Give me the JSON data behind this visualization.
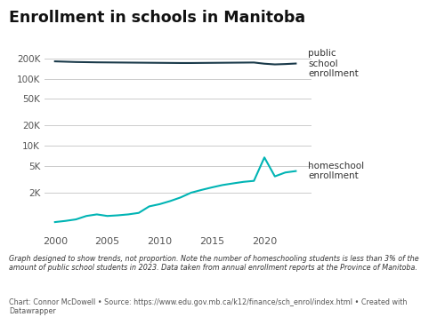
{
  "title": "Enrollment in schools in Manitoba",
  "public_years": [
    2000,
    2001,
    2002,
    2003,
    2004,
    2005,
    2006,
    2007,
    2008,
    2009,
    2010,
    2011,
    2012,
    2013,
    2014,
    2015,
    2016,
    2017,
    2018,
    2019,
    2020,
    2021,
    2022,
    2023
  ],
  "public_values": [
    181000,
    179000,
    177000,
    176000,
    175000,
    174500,
    174000,
    173500,
    173000,
    172500,
    172000,
    171500,
    171000,
    171000,
    171500,
    172000,
    172500,
    173000,
    173500,
    174000,
    167000,
    163000,
    165000,
    168000
  ],
  "home_years": [
    2000,
    2001,
    2002,
    2003,
    2004,
    2005,
    2006,
    2007,
    2008,
    2009,
    2010,
    2011,
    2012,
    2013,
    2014,
    2015,
    2016,
    2017,
    2018,
    2019,
    2020,
    2021,
    2022,
    2023
  ],
  "home_values": [
    730,
    760,
    800,
    900,
    950,
    900,
    920,
    950,
    1000,
    1250,
    1350,
    1500,
    1700,
    2000,
    2200,
    2400,
    2600,
    2750,
    2900,
    3000,
    6700,
    3500,
    4000,
    4200
  ],
  "public_color": "#1a3a4a",
  "home_color": "#00b4b4",
  "bg_color": "#ffffff",
  "grid_color": "#cccccc",
  "yticks_log": [
    2000,
    5000,
    10000,
    20000,
    50000,
    100000,
    200000
  ],
  "ytick_labels": [
    "2K",
    "5K",
    "10K",
    "20K",
    "50K",
    "100K",
    "200K"
  ],
  "xticks": [
    2000,
    2005,
    2010,
    2015,
    2020
  ],
  "note_text": "Graph designed to show trends, not proportion. Note the number of homeschooling students is less than 3% of the\namount of public school students in 2023. Data taken from annual enrollment reports at the Province of Manitoba.",
  "source_text": "Chart: Connor McDowell • Source: https://www.edu.gov.mb.ca/k12/finance/sch_enrol/index.html • Created with\nDatawrapper",
  "public_label": "public\nschool\nenrollment",
  "home_label": "homeschool\nenrollment"
}
